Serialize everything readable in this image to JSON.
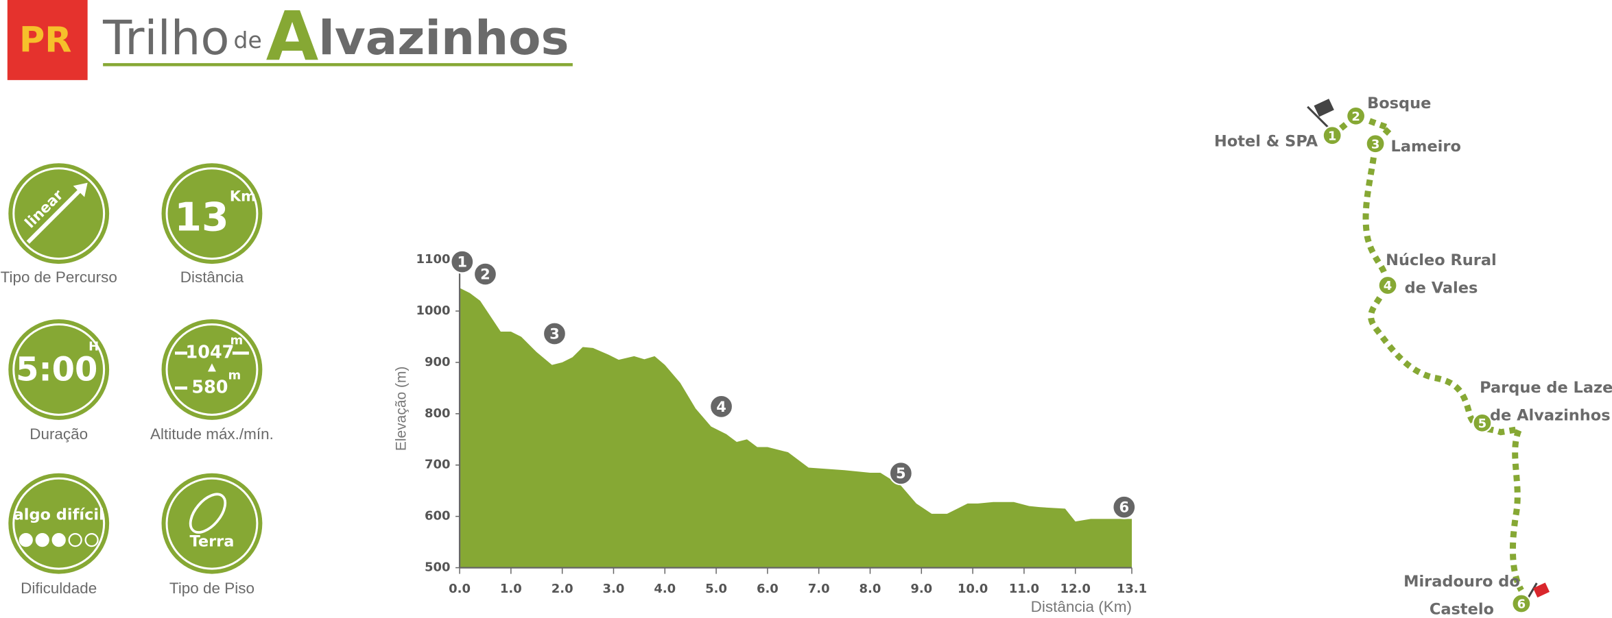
{
  "header": {
    "badge": "PR",
    "title_a": "Trilho",
    "title_b": "de",
    "title_c": "A",
    "title_d": "lvazinhos"
  },
  "stats": [
    {
      "label": "Tipo de Percurso",
      "icon_text": "linear"
    },
    {
      "label": "Distância",
      "value": 13,
      "unit": "Km"
    },
    {
      "label": "Duração",
      "value": "5:00",
      "unit": "H"
    },
    {
      "label": "Altitude máx./mín.",
      "max": 1047,
      "max_unit": "m",
      "min": 580,
      "min_unit": "m"
    },
    {
      "label": "Dificuldade",
      "icon_text": "algo difícil",
      "level": 3,
      "level_max": 5
    },
    {
      "label": "Tipo de Piso",
      "icon_text": "Terra"
    }
  ],
  "chart_data": {
    "type": "area",
    "color": "#86a834",
    "y_label": "Elevação (m)",
    "x_label": "Distância (Km)",
    "x": [
      0,
      0.2,
      0.4,
      0.6,
      0.8,
      1.0,
      1.2,
      1.5,
      1.8,
      2.0,
      2.2,
      2.4,
      2.6,
      2.9,
      3.1,
      3.4,
      3.6,
      3.8,
      4.0,
      4.3,
      4.6,
      4.9,
      5.2,
      5.4,
      5.6,
      5.8,
      6.0,
      6.4,
      6.8,
      7.5,
      7.7,
      8.0,
      8.2,
      8.6,
      8.9,
      9.2,
      9.5,
      9.9,
      10.1,
      10.4,
      10.8,
      11.1,
      11.3,
      11.8,
      12.0,
      12.3,
      12.6,
      13.1
    ],
    "values": [
      1045,
      1035,
      1020,
      990,
      960,
      960,
      950,
      920,
      895,
      900,
      910,
      930,
      928,
      915,
      905,
      912,
      906,
      912,
      895,
      860,
      810,
      775,
      760,
      745,
      750,
      735,
      735,
      725,
      695,
      690,
      688,
      685,
      685,
      660,
      625,
      605,
      605,
      625,
      625,
      628,
      628,
      620,
      618,
      615,
      590,
      595,
      595,
      595
    ],
    "xlim": [
      0,
      13.1
    ],
    "ylim": [
      500,
      1100
    ],
    "xticks": [
      {
        "value": 0,
        "label": "0.0"
      },
      {
        "value": 1,
        "label": "1.0"
      },
      {
        "value": 2,
        "label": "2.0"
      },
      {
        "value": 3,
        "label": "3.0"
      },
      {
        "value": 4,
        "label": "4.0"
      },
      {
        "value": 5,
        "label": "5.0"
      },
      {
        "value": 6,
        "label": "6.0"
      },
      {
        "value": 7,
        "label": "7.0"
      },
      {
        "value": 8,
        "label": "8.0"
      },
      {
        "value": 9,
        "label": "9.0"
      },
      {
        "value": 10,
        "label": "10.0"
      },
      {
        "value": 11,
        "label": "11.0"
      },
      {
        "value": 12,
        "label": "12.0"
      },
      13.1
    ],
    "yticks": [
      500,
      600,
      700,
      800,
      900,
      1000,
      1100
    ],
    "annotations": [
      {
        "text": "1",
        "x": 0.05,
        "y": 1096
      },
      {
        "text": "2",
        "x": 0.5,
        "y": 1072
      },
      {
        "text": "3",
        "x": 1.85,
        "y": 956
      },
      {
        "text": "4",
        "x": 5.1,
        "y": 814
      },
      {
        "text": "5",
        "x": 8.6,
        "y": 684
      },
      {
        "text": "6",
        "x": 12.95,
        "y": 618
      }
    ]
  },
  "map": {
    "nodes": [
      {
        "number": "1",
        "lines": [
          "Hotel & SPA"
        ]
      },
      {
        "number": "2",
        "lines": [
          "Bosque"
        ]
      },
      {
        "number": "3",
        "lines": [
          "Lameiro"
        ]
      },
      {
        "number": "4",
        "lines": [
          "Núcleo Rural",
          "de Vales"
        ]
      },
      {
        "number": "5",
        "lines": [
          "Parque de Lazer",
          "de Alvazinhos"
        ]
      },
      {
        "number": "6",
        "lines": [
          "Miradouro do",
          "Castelo"
        ]
      }
    ]
  }
}
